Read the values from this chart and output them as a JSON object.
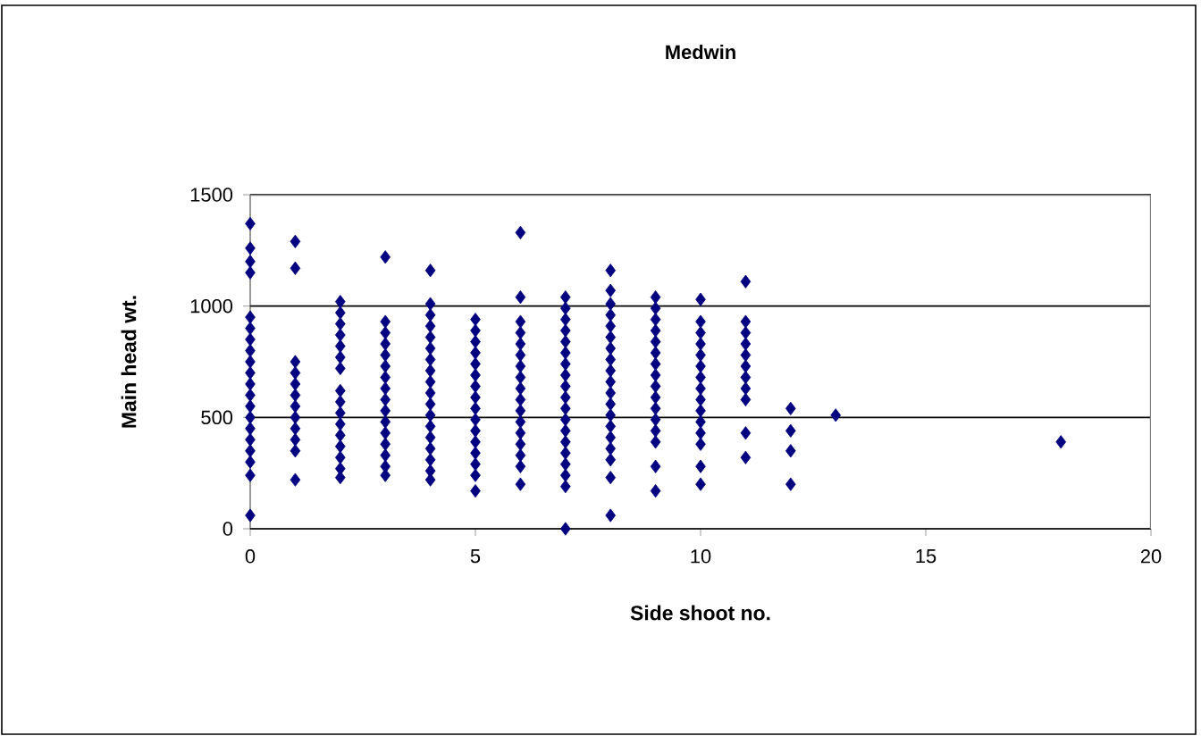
{
  "chart_data": {
    "type": "scatter",
    "title": "Medwin",
    "xlabel": "Side shoot no.",
    "ylabel": "Main head wt.",
    "xlim": [
      0,
      20
    ],
    "ylim": [
      0,
      1500
    ],
    "xticks": [
      0,
      5,
      10,
      15,
      20
    ],
    "yticks": [
      0,
      500,
      1000,
      1500
    ],
    "grid": "y",
    "marker": "diamond",
    "series": [
      {
        "color": "#000080",
        "x": [
          0,
          0,
          0,
          0,
          0,
          0,
          0,
          0,
          0,
          0,
          0,
          0,
          0,
          0,
          0,
          0,
          0,
          0,
          0,
          0,
          1,
          1,
          1,
          1,
          1,
          1,
          1,
          1,
          1,
          1,
          1,
          1,
          2,
          2,
          2,
          2,
          2,
          2,
          2,
          2,
          2,
          2,
          2,
          2,
          2,
          2,
          2,
          2,
          3,
          3,
          3,
          3,
          3,
          3,
          3,
          3,
          3,
          3,
          3,
          3,
          3,
          3,
          3,
          3,
          4,
          4,
          4,
          4,
          4,
          4,
          4,
          4,
          4,
          4,
          4,
          4,
          4,
          4,
          4,
          4,
          4,
          4,
          5,
          5,
          5,
          5,
          5,
          5,
          5,
          5,
          5,
          5,
          5,
          5,
          5,
          5,
          5,
          5,
          6,
          6,
          6,
          6,
          6,
          6,
          6,
          6,
          6,
          6,
          6,
          6,
          6,
          6,
          6,
          6,
          6,
          7,
          7,
          7,
          7,
          7,
          7,
          7,
          7,
          7,
          7,
          7,
          7,
          7,
          7,
          7,
          7,
          7,
          7,
          7,
          8,
          8,
          8,
          8,
          8,
          8,
          8,
          8,
          8,
          8,
          8,
          8,
          8,
          8,
          8,
          8,
          8,
          8,
          8,
          9,
          9,
          9,
          9,
          9,
          9,
          9,
          9,
          9,
          9,
          9,
          9,
          9,
          9,
          9,
          9,
          10,
          10,
          10,
          10,
          10,
          10,
          10,
          10,
          10,
          10,
          10,
          10,
          10,
          10,
          10,
          11,
          11,
          11,
          11,
          11,
          11,
          11,
          11,
          11,
          11,
          11,
          12,
          12,
          12,
          12,
          13,
          18
        ],
        "values": [
          1370,
          1260,
          1200,
          1150,
          950,
          900,
          850,
          800,
          750,
          700,
          650,
          600,
          550,
          500,
          450,
          400,
          350,
          300,
          240,
          60,
          1290,
          1170,
          750,
          700,
          650,
          600,
          550,
          500,
          450,
          400,
          350,
          220,
          1020,
          970,
          920,
          870,
          820,
          770,
          720,
          620,
          570,
          520,
          470,
          420,
          370,
          320,
          270,
          230,
          1220,
          930,
          880,
          830,
          780,
          730,
          680,
          630,
          580,
          530,
          480,
          430,
          380,
          330,
          280,
          240,
          1160,
          1010,
          960,
          910,
          860,
          810,
          760,
          710,
          660,
          610,
          560,
          510,
          460,
          410,
          360,
          310,
          260,
          220,
          940,
          890,
          840,
          790,
          740,
          690,
          640,
          590,
          540,
          490,
          440,
          390,
          340,
          290,
          240,
          170,
          1330,
          1040,
          930,
          880,
          830,
          780,
          730,
          680,
          630,
          580,
          530,
          480,
          430,
          380,
          330,
          280,
          200,
          1040,
          990,
          940,
          890,
          840,
          790,
          740,
          690,
          640,
          590,
          540,
          490,
          440,
          390,
          340,
          290,
          240,
          190,
          0,
          1160,
          1070,
          1010,
          960,
          910,
          860,
          810,
          760,
          710,
          660,
          610,
          560,
          510,
          460,
          410,
          360,
          310,
          230,
          60,
          1040,
          990,
          940,
          890,
          840,
          790,
          740,
          690,
          640,
          590,
          540,
          490,
          440,
          390,
          280,
          170,
          1030,
          930,
          880,
          830,
          780,
          730,
          680,
          630,
          580,
          530,
          480,
          430,
          380,
          280,
          200,
          1110,
          930,
          880,
          830,
          780,
          730,
          680,
          630,
          580,
          430,
          320,
          540,
          440,
          350,
          200,
          510,
          390
        ]
      }
    ]
  }
}
